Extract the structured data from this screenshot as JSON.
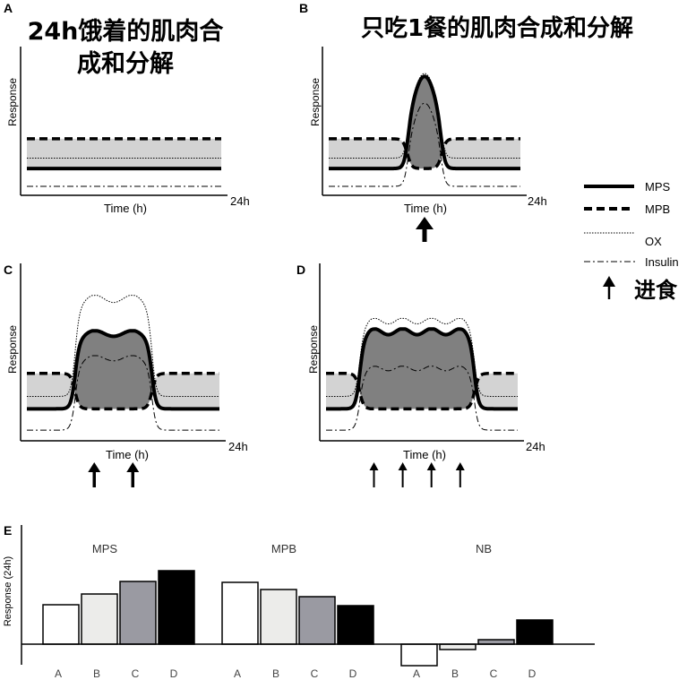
{
  "panels": {
    "A": {
      "letter": "A",
      "title_lines": [
        "24h饿着的肌肉合",
        "成和分解"
      ],
      "ylabel": "Response",
      "xlabel": "Time (h)",
      "x_end": "24h",
      "meals": []
    },
    "B": {
      "letter": "B",
      "title_lines": [
        "只吃1餐的肌肉合成和分解"
      ],
      "ylabel": "Response",
      "xlabel": "Time (h)",
      "x_end": "24h",
      "meals": [
        0.5
      ]
    },
    "C": {
      "letter": "C",
      "title_lines": [],
      "ylabel": "Response",
      "xlabel": "Time (h)",
      "x_end": "24h",
      "meals": [
        0.35,
        0.55
      ]
    },
    "D": {
      "letter": "D",
      "title_lines": [],
      "ylabel": "Response",
      "xlabel": "Time (h)",
      "x_end": "24h",
      "meals": [
        0.25,
        0.4,
        0.55,
        0.7
      ]
    }
  },
  "legend": {
    "items": [
      {
        "label": "MPS",
        "style": "thick-solid"
      },
      {
        "label": "MPB",
        "style": "thick-dashed"
      },
      {
        "label": "OX",
        "style": "dotted"
      },
      {
        "label": "Insulin",
        "style": "dash-dot"
      }
    ],
    "meal_label": "进食"
  },
  "panel_E": {
    "letter": "E",
    "ylabel": "Response (24h)",
    "groups": [
      "MPS",
      "MPB",
      "NB"
    ],
    "categories": [
      "A",
      "B",
      "C",
      "D"
    ]
  },
  "colors": {
    "line": "#000000",
    "light_band": "#d3d3d3",
    "dark_fill": "#808080",
    "bar_A": "#ffffff",
    "bar_B": "#ececea",
    "bar_C": "#9a9aa2",
    "bar_D": "#000000"
  },
  "chart_data": {
    "type": "bar",
    "ylabel": "Response (24h)",
    "groups": [
      "MPS",
      "MPB",
      "NB"
    ],
    "categories": [
      "A",
      "B",
      "C",
      "D"
    ],
    "series": [
      {
        "group": "MPS",
        "values": [
          44,
          56,
          70,
          82
        ]
      },
      {
        "group": "MPB",
        "values": [
          69,
          61,
          53,
          43
        ]
      },
      {
        "group": "NB",
        "values": [
          -24,
          -6,
          5,
          27
        ]
      }
    ],
    "grid": false,
    "legend_placement": "none"
  }
}
